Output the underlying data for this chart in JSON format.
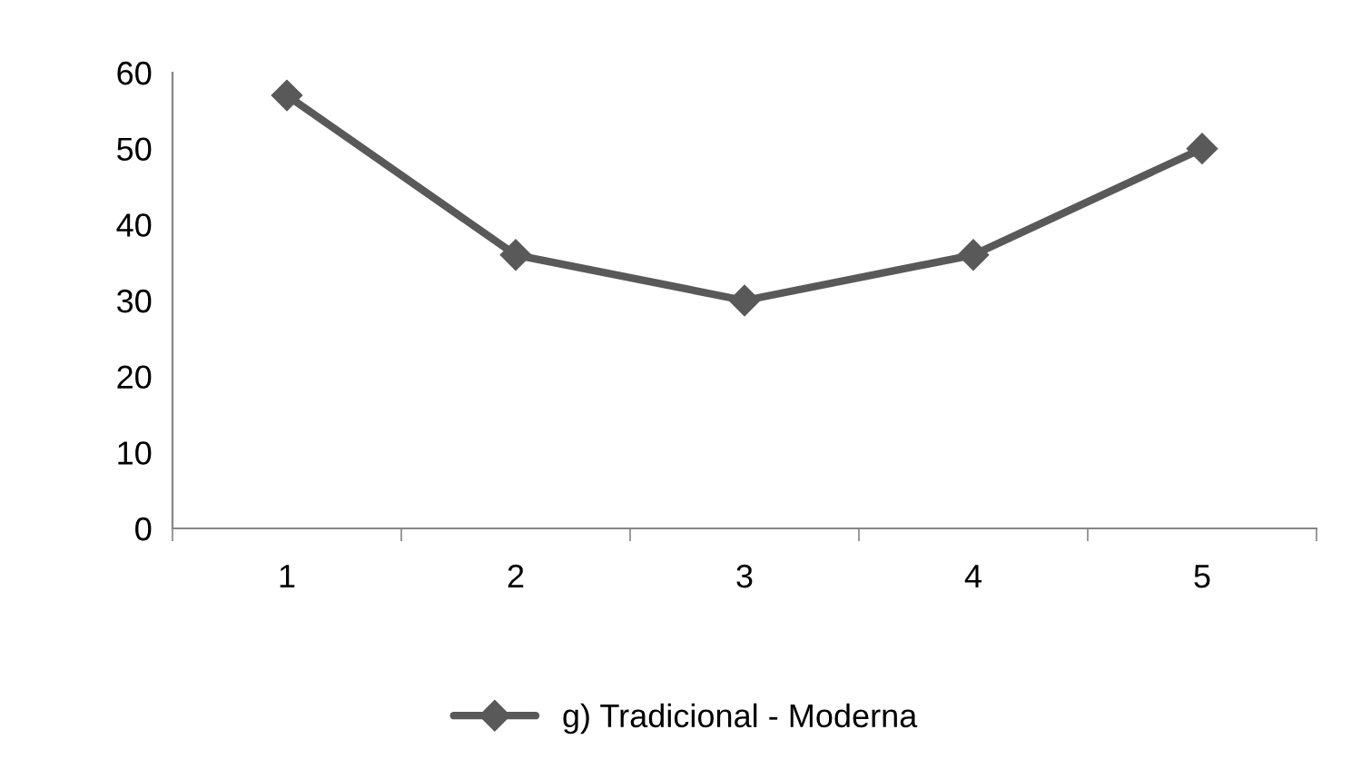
{
  "chart_data": {
    "type": "line",
    "categories": [
      "1",
      "2",
      "3",
      "4",
      "5"
    ],
    "series": [
      {
        "name": "g) Tradicional - Moderna",
        "color": "#595959",
        "values": [
          57,
          36,
          30,
          36,
          50
        ]
      }
    ],
    "ylim": [
      0,
      60
    ],
    "yticks": [
      0,
      10,
      20,
      30,
      40,
      50,
      60
    ],
    "grid": false,
    "legend": "bottom",
    "marker": "diamond",
    "line_style": "solid"
  }
}
